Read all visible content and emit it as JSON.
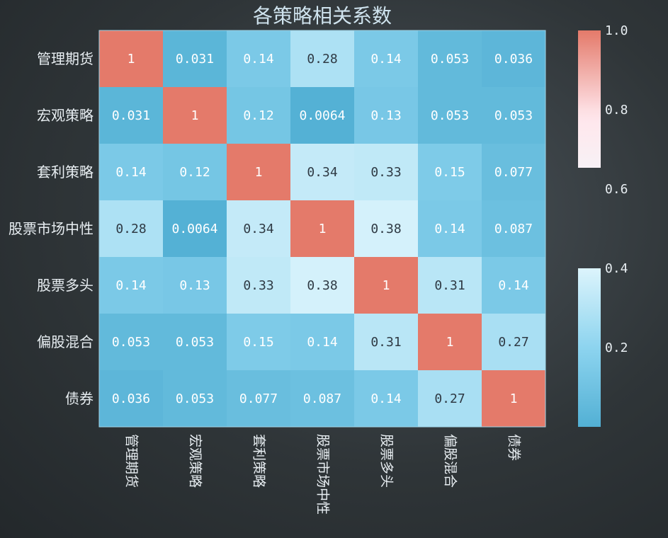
{
  "chart_data": {
    "type": "heatmap",
    "title": "各策略相关系数",
    "rows": [
      "管理期货",
      "宏观策略",
      "套利策略",
      "股票市场中性",
      "股票多头",
      "偏股混合",
      "债券"
    ],
    "columns": [
      "管理期货",
      "宏观策略",
      "套利策略",
      "股票市场中性",
      "股票多头",
      "偏股混合",
      "债券"
    ],
    "values": [
      [
        1,
        0.031,
        0.14,
        0.28,
        0.14,
        0.053,
        0.036
      ],
      [
        0.031,
        1,
        0.12,
        0.0064,
        0.13,
        0.053,
        0.053
      ],
      [
        0.14,
        0.12,
        1,
        0.34,
        0.33,
        0.15,
        0.077
      ],
      [
        0.28,
        0.0064,
        0.34,
        1,
        0.38,
        0.14,
        0.087
      ],
      [
        0.14,
        0.13,
        0.33,
        0.38,
        1,
        0.31,
        0.14
      ],
      [
        0.053,
        0.053,
        0.15,
        0.14,
        0.31,
        1,
        0.27
      ],
      [
        0.036,
        0.053,
        0.077,
        0.087,
        0.14,
        0.27,
        1
      ]
    ],
    "cell_labels": [
      [
        "1",
        "0.031",
        "0.14",
        "0.28",
        "0.14",
        "0.053",
        "0.036"
      ],
      [
        "0.031",
        "1",
        "0.12",
        "0.0064",
        "0.13",
        "0.053",
        "0.053"
      ],
      [
        "0.14",
        "0.12",
        "1",
        "0.34",
        "0.33",
        "0.15",
        "0.077"
      ],
      [
        "0.28",
        "0.0064",
        "0.34",
        "1",
        "0.38",
        "0.14",
        "0.087"
      ],
      [
        "0.14",
        "0.13",
        "0.33",
        "0.38",
        "1",
        "0.31",
        "0.14"
      ],
      [
        "0.053",
        "0.053",
        "0.15",
        "0.14",
        "0.31",
        "1",
        "0.27"
      ],
      [
        "0.036",
        "0.053",
        "0.077",
        "0.087",
        "0.14",
        "0.27",
        "1"
      ]
    ],
    "colorbar": {
      "ticks": [
        0.2,
        0.4,
        0.6,
        0.8,
        1.0
      ],
      "tick_labels": [
        "0.2",
        "0.4",
        "0.6",
        "0.8",
        "1.0"
      ],
      "range": [
        0,
        1
      ],
      "gap_range": [
        0.4,
        0.6
      ]
    },
    "colormap": {
      "low": "#52b0d4",
      "mid_low": "#8dd4ef",
      "mid": "#f0fcff",
      "mid_high": "#ffe6ec",
      "high": "#e47a6a"
    },
    "grid": false,
    "legend": "right"
  }
}
